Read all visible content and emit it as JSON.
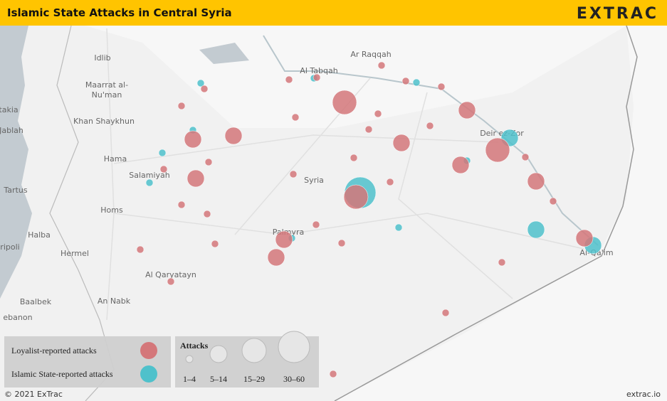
{
  "header": {
    "title": "Islamic State Attacks in Central Syria",
    "logo": "EXTRAC"
  },
  "places": {
    "raqqah": "Ar Raqqah",
    "tabqah": "Al Tabqah",
    "idlib": "Idlib",
    "maarrat1": "Maarrat al-",
    "maarrat2": "Nu'man",
    "khan": "Khan Shaykhun",
    "latakia": "takia",
    "jablah": "Jablah",
    "hama": "Hama",
    "salamiyah": "Salamiyah",
    "tartus": "Tartus",
    "homs": "Homs",
    "halba": "Halba",
    "tripoli": "ripoli",
    "hermel": "Hermel",
    "qaryatayn": "Al Qaryatayn",
    "baalbek": "Baalbek",
    "nabk": "An Nabk",
    "lebanon": "ebanon",
    "syria": "Syria",
    "palmyra": "Palmyra",
    "deir": "Deir ez-Zor",
    "qaim": "Al-Qa'im"
  },
  "legend": {
    "loyalist": "Loyalist-reported attacks",
    "islamic_state": "Islamic State-reported attacks",
    "size_title": "Attacks",
    "sizes": [
      "1–4",
      "5–14",
      "15–29",
      "30–60"
    ]
  },
  "footer": {
    "copyright": "© 2021 ExTrac",
    "url": "extrac.io"
  }
}
